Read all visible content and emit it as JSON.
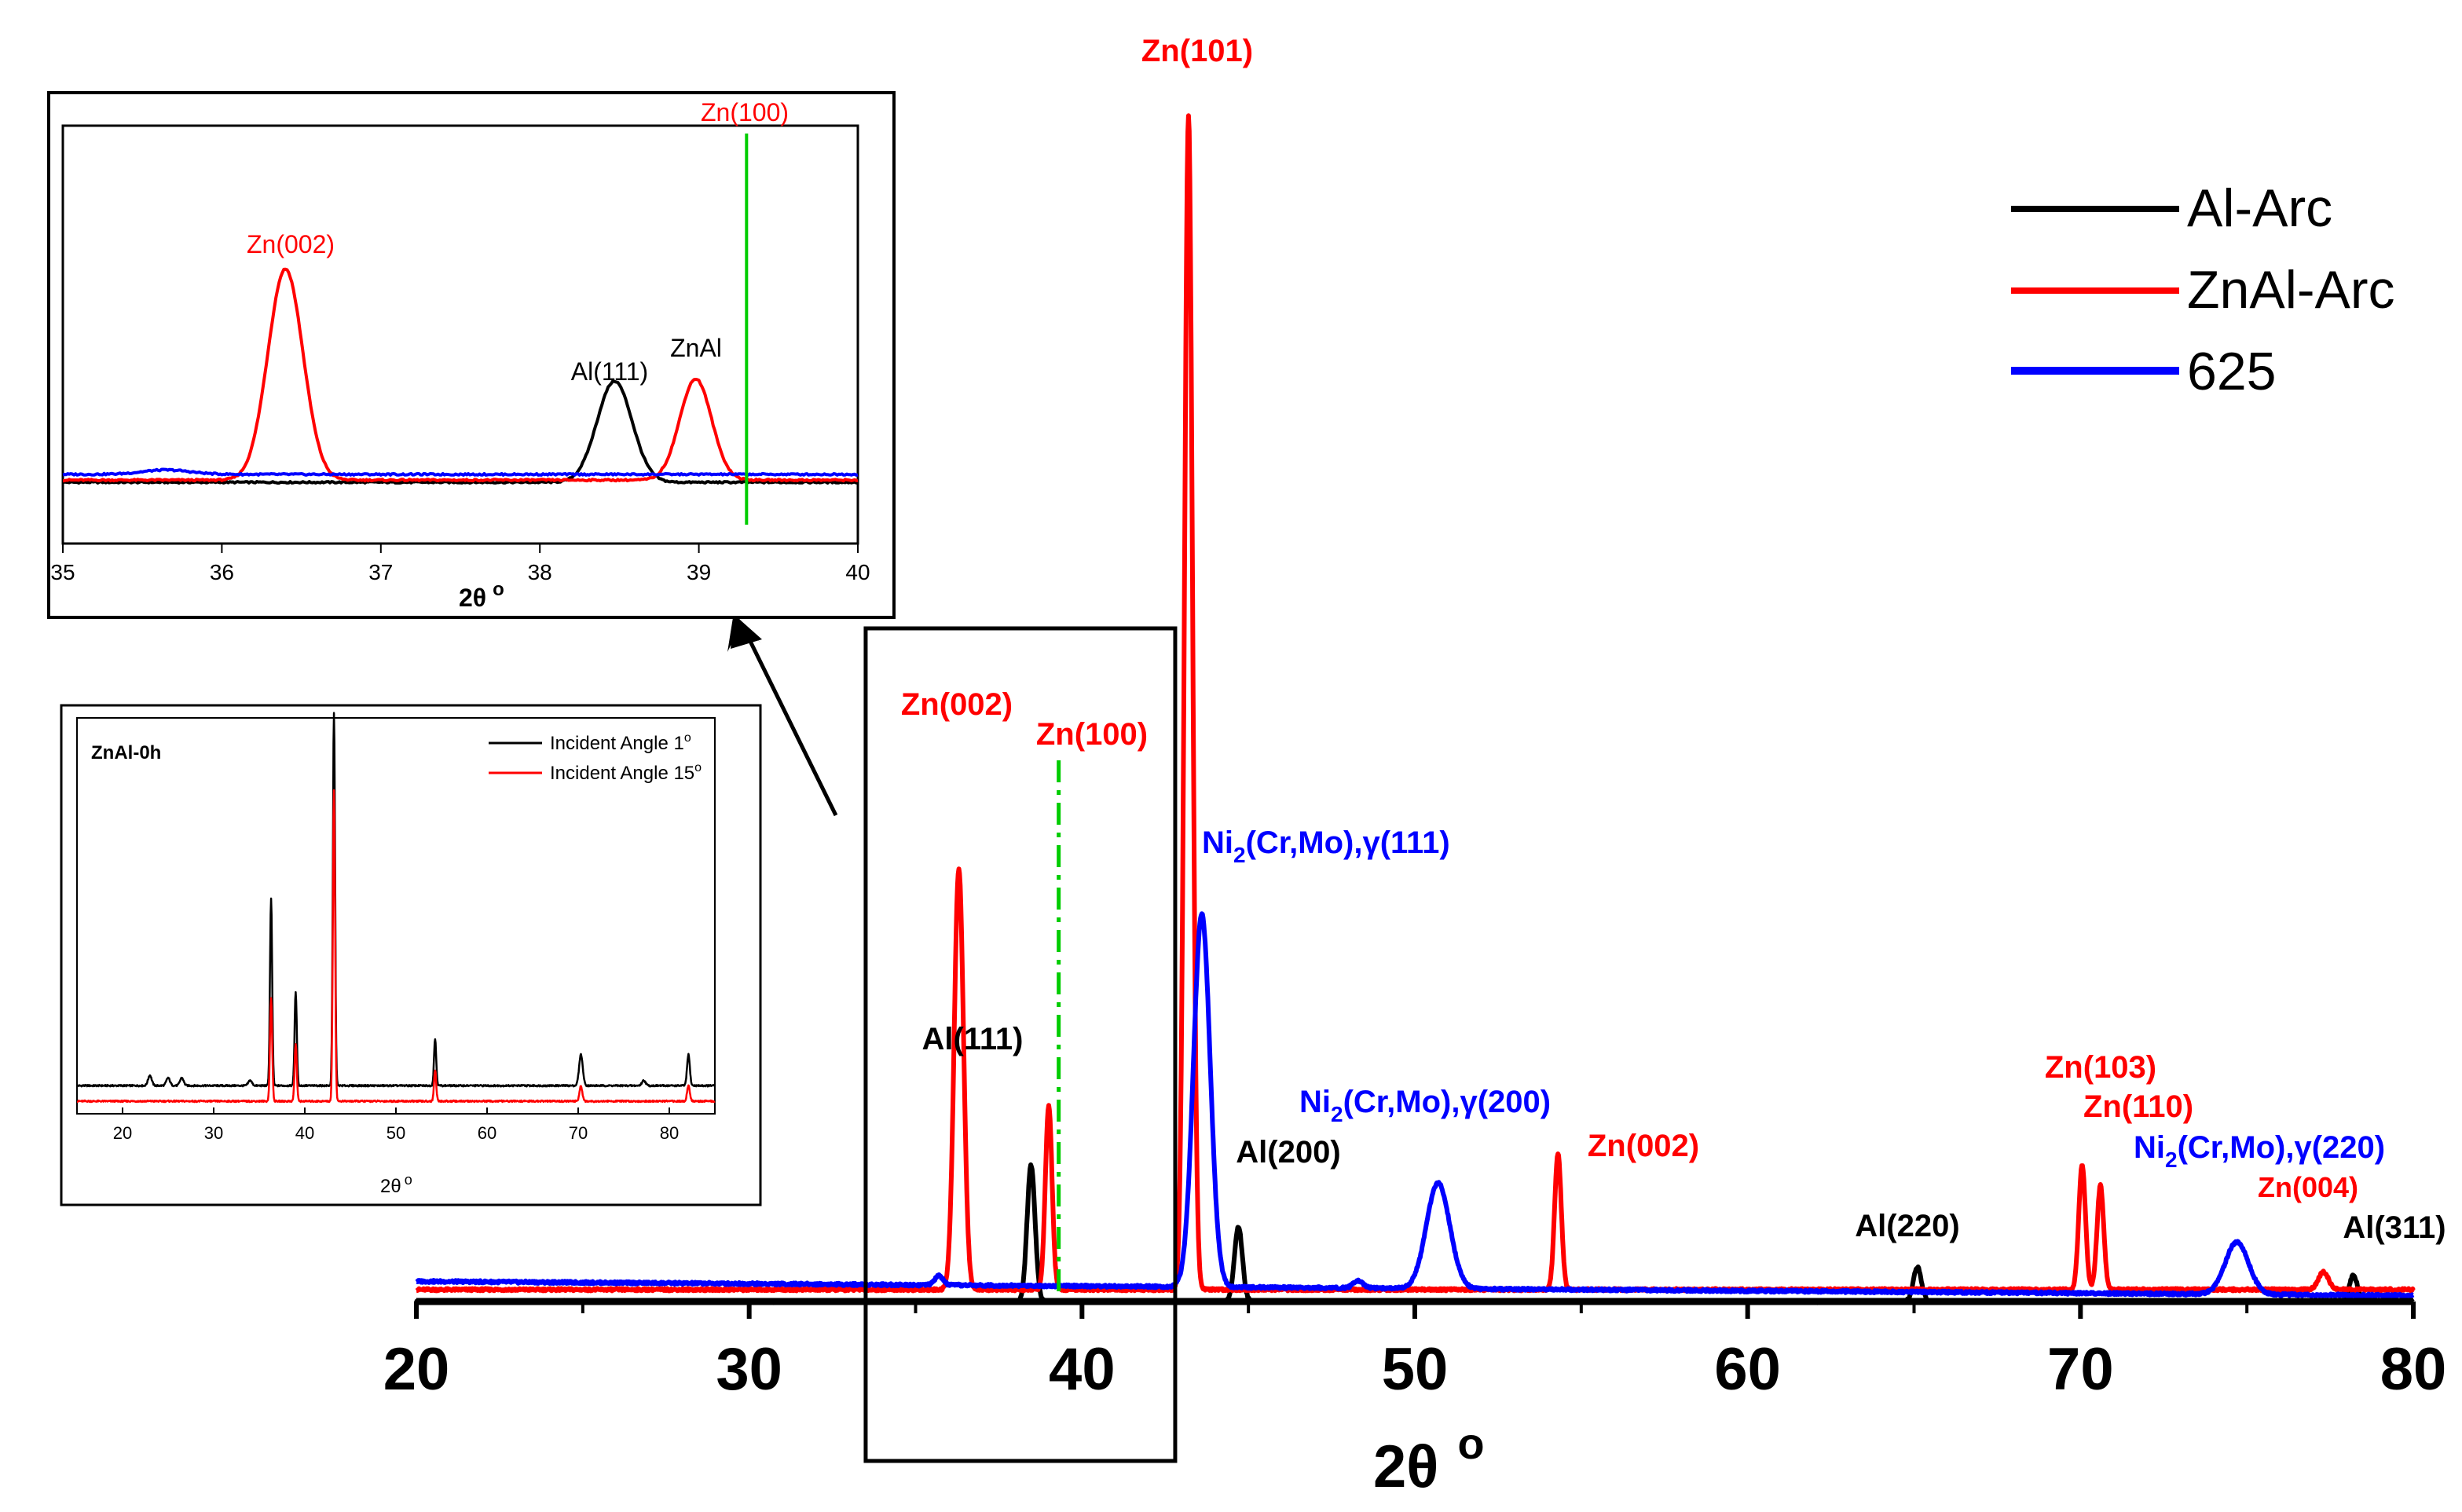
{
  "colors": {
    "al": "#000000",
    "znal": "#ff0000",
    "c625": "#0000ff",
    "marker": "#00cc00"
  },
  "chart_data": [
    {
      "id": "main",
      "type": "line",
      "title": "",
      "xlabel": "2θ",
      "xlabel_sup": "o",
      "ylabel": "",
      "xlim": [
        20,
        80
      ],
      "xticks": [
        "20",
        "30",
        "40",
        "50",
        "60",
        "70",
        "80"
      ],
      "ylim": [
        0,
        100
      ],
      "legend": {
        "placement": "top-right",
        "entries": [
          "Al-Arc",
          "ZnAl-Arc",
          "625"
        ]
      },
      "series": [
        {
          "name": "Al-Arc",
          "color": "#000000",
          "baseline": 0,
          "peaks": [
            [
              38.47,
              11.5,
              0.12
            ],
            [
              44.7,
              6.3,
              0.12
            ],
            [
              65.1,
              2.9,
              0.12
            ],
            [
              78.2,
              2.2,
              0.12
            ]
          ]
        },
        {
          "name": "ZnAl-Arc",
          "color": "#ff0000",
          "baseline": 1.0,
          "peaks": [
            [
              36.3,
              35.5,
              0.14
            ],
            [
              39.0,
              15.5,
              0.1
            ],
            [
              43.2,
              99,
              0.12
            ],
            [
              54.3,
              11.5,
              0.1
            ],
            [
              70.05,
              10.5,
              0.1
            ],
            [
              70.6,
              8.8,
              0.1
            ],
            [
              77.3,
              1.5,
              0.15
            ]
          ]
        },
        {
          "name": "625",
          "color": "#0000ff",
          "baseline": 1.7,
          "slope": 0.02,
          "peaks": [
            [
              43.6,
              31.5,
              0.25
            ],
            [
              50.7,
              8.9,
              0.35
            ],
            [
              74.7,
              4.4,
              0.35
            ],
            [
              35.7,
              0.8,
              0.12
            ],
            [
              48.3,
              0.6,
              0.15
            ]
          ]
        }
      ],
      "annotations": [
        {
          "text": "Zn(101)",
          "color": "#ff0000"
        },
        {
          "text": "Zn(002)",
          "color": "#ff0000"
        },
        {
          "text": "Zn(100)",
          "color": "#ff0000"
        },
        {
          "text": "Al(111)",
          "color": "#000000"
        },
        {
          "text": "Ni",
          "sub": "2",
          "rest": "(Cr,Mo),γ(111)",
          "color": "#0000ff"
        },
        {
          "text": "Al(200)",
          "color": "#000000"
        },
        {
          "text": "Ni",
          "sub": "2",
          "rest": "(Cr,Mo),γ(200)",
          "color": "#0000ff"
        },
        {
          "text": "Zn(002)",
          "color": "#ff0000"
        },
        {
          "text": "Al(220)",
          "color": "#000000"
        },
        {
          "text": "Zn(103)",
          "color": "#ff0000"
        },
        {
          "text": "Zn(110)",
          "color": "#ff0000"
        },
        {
          "text": "Ni",
          "sub": "2",
          "rest": "(Cr,Mo),γ(220)",
          "color": "#0000ff"
        },
        {
          "text": "Zn(004)",
          "color": "#ff0000"
        },
        {
          "text": "Al(311)",
          "color": "#000000"
        }
      ],
      "reference_line": {
        "x": 39.3,
        "style": "dash-dot",
        "color": "#00cc00"
      },
      "zoom_box": {
        "x": [
          33.5,
          42.8
        ]
      }
    },
    {
      "id": "inset-zoom",
      "type": "line",
      "xlabel": "2θ",
      "xlabel_sup": "o",
      "xlim": [
        35,
        40
      ],
      "xticks": [
        "35",
        "36",
        "37",
        "38",
        "39",
        "40"
      ],
      "series": [
        {
          "name": "Al-Arc",
          "color": "#000000",
          "baseline": 0,
          "peaks": [
            [
              38.47,
              23,
              0.11
            ]
          ]
        },
        {
          "name": "ZnAl-Arc",
          "color": "#ff0000",
          "baseline": 0.5,
          "peaks": [
            [
              36.4,
              48,
              0.11
            ],
            [
              38.98,
              23,
              0.1
            ]
          ]
        },
        {
          "name": "625",
          "color": "#0000ff",
          "baseline": 1.8,
          "peaks": [
            [
              35.65,
              1.0,
              0.15
            ]
          ]
        }
      ],
      "annotations": [
        {
          "text": "Zn(100)",
          "color": "#ff0000"
        },
        {
          "text": "Zn(002)",
          "color": "#ff0000"
        },
        {
          "text": "Al(111)",
          "color": "#000000"
        },
        {
          "text": "ZnAl",
          "color": "#000000"
        }
      ],
      "reference_line": {
        "x": 39.3,
        "color": "#00cc00"
      }
    },
    {
      "id": "inset-angle",
      "type": "line",
      "title": "ZnAl-0h",
      "xlabel": "2θ",
      "xlabel_sup": "o",
      "xlim": [
        15,
        85
      ],
      "xticks": [
        "20",
        "30",
        "40",
        "50",
        "60",
        "70",
        "80"
      ],
      "legend": {
        "placement": "top-right",
        "entries": [
          {
            "text": "Incident Angle 1",
            "sup": "o"
          },
          {
            "text": "Incident Angle 15",
            "sup": "o"
          }
        ]
      },
      "series": [
        {
          "name": "Incident Angle 1°",
          "color": "#000000",
          "baseline": 3,
          "peaks": [
            [
              23,
              2,
              0.2
            ],
            [
              25,
              1.5,
              0.2
            ],
            [
              26.5,
              1.5,
              0.2
            ],
            [
              34,
              1,
              0.2
            ],
            [
              36.3,
              36,
              0.12
            ],
            [
              39,
              18,
              0.12
            ],
            [
              43.2,
              72,
              0.12
            ],
            [
              54.3,
              9,
              0.12
            ],
            [
              70.3,
              6,
              0.2
            ],
            [
              77.2,
              1,
              0.2
            ],
            [
              82.1,
              6,
              0.15
            ]
          ]
        },
        {
          "name": "Incident Angle 15°",
          "color": "#ff0000",
          "baseline": 0,
          "peaks": [
            [
              36.3,
              20,
              0.12
            ],
            [
              39,
              11,
              0.12
            ],
            [
              43.2,
              60,
              0.12
            ],
            [
              54.3,
              6,
              0.12
            ],
            [
              70.3,
              3,
              0.15
            ],
            [
              82.1,
              3,
              0.15
            ]
          ]
        }
      ]
    }
  ]
}
